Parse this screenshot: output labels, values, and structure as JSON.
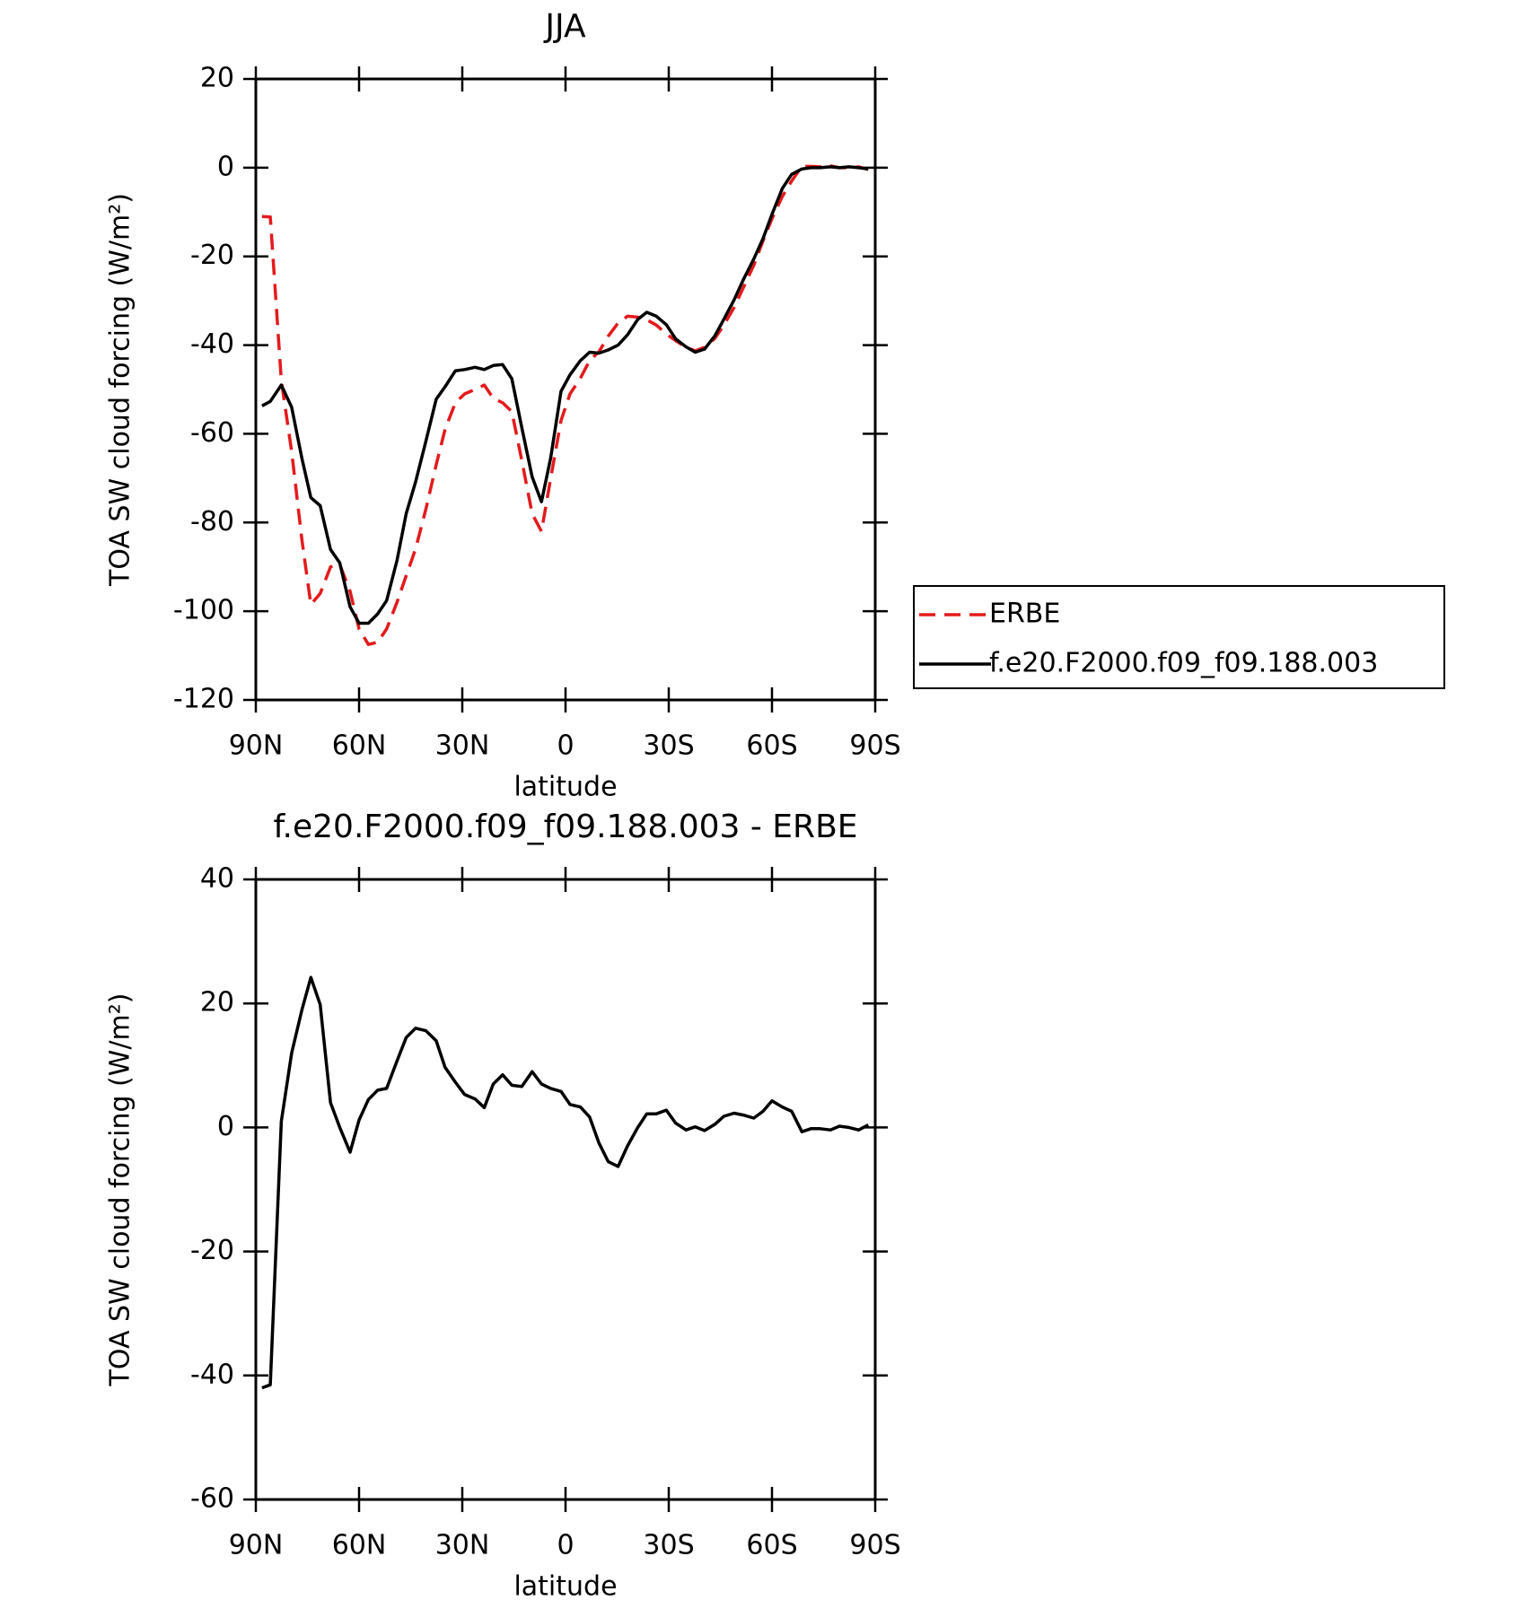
{
  "chart_data": [
    {
      "type": "line",
      "title": "JJA",
      "xlabel": "latitude",
      "ylabel": "TOA SW cloud forcing (W/m²)",
      "x": [
        88.2,
        85.8,
        82.6,
        79.6,
        76.6,
        74,
        71.3,
        68.3,
        65.6,
        62.6,
        60,
        57.3,
        54.6,
        52,
        49,
        46.3,
        43.6,
        40.6,
        37.6,
        35,
        32,
        29.3,
        26.3,
        23.6,
        21,
        18.3,
        15.6,
        12.7,
        9.7,
        7,
        4.3,
        1.3,
        -1.3,
        -4.3,
        -7,
        -9.7,
        -12.4,
        -15.3,
        -18,
        -21,
        -23.6,
        -26.4,
        -29.3,
        -32,
        -35,
        -37.7,
        -40.4,
        -43.4,
        -46,
        -49,
        -51.7,
        -54.7,
        -57.4,
        -60,
        -63,
        -65.7,
        -68.7,
        -71.3,
        -74,
        -77,
        -79.6,
        -82.3,
        -85.2,
        -88
      ],
      "series": [
        {
          "name": "ERBE",
          "color": "#e41a1c",
          "dashed": true,
          "values": [
            -11,
            -11.1,
            -48,
            -64,
            -84,
            -98.5,
            -96,
            -90,
            -89.5,
            -95.5,
            -104,
            -107.5,
            -107,
            -104,
            -98,
            -92,
            -86,
            -77,
            -67,
            -59,
            -53,
            -51,
            -50,
            -49,
            -52,
            -53,
            -55,
            -66,
            -78,
            -82,
            -70,
            -57,
            -51,
            -47.5,
            -43.5,
            -41.5,
            -38,
            -35,
            -33.5,
            -33.7,
            -34.3,
            -35.5,
            -37.5,
            -39,
            -40.5,
            -41.3,
            -40.5,
            -38.5,
            -35.5,
            -31.5,
            -27,
            -22,
            -16.5,
            -11.5,
            -6.5,
            -3,
            0.3,
            0.3,
            0.2,
            0.4,
            0,
            0,
            0.2,
            -0.4
          ]
        },
        {
          "name": "f.e20.F2000.f09_f09.188.003",
          "color": "#000000",
          "dashed": false,
          "values": [
            -53.7,
            -52.7,
            -49,
            -54,
            -65.6,
            -74.4,
            -76.2,
            -86.1,
            -89.1,
            -99,
            -102.7,
            -102.7,
            -100.6,
            -97.6,
            -88.6,
            -78,
            -70.9,
            -61.7,
            -52.2,
            -49.4,
            -45.8,
            -45.5,
            -45,
            -45.5,
            -44.6,
            -44.4,
            -47.6,
            -58.6,
            -69.7,
            -75.3,
            -65.4,
            -50.4,
            -46.7,
            -43.5,
            -41.6,
            -41.8,
            -41.1,
            -40,
            -37.7,
            -34.2,
            -32.6,
            -33.5,
            -35.4,
            -38.6,
            -40.4,
            -41.6,
            -40.9,
            -37.9,
            -34.2,
            -29.8,
            -25.2,
            -20.6,
            -16,
            -10.5,
            -4.7,
            -1.5,
            -0.3,
            0,
            0,
            0.2,
            0,
            0.2,
            0,
            -0.3
          ]
        }
      ],
      "xlim": [
        90,
        -90
      ],
      "xticks": [
        {
          "value": 90,
          "label": "90N"
        },
        {
          "value": 60,
          "label": "60N"
        },
        {
          "value": 30,
          "label": "30N"
        },
        0,
        {
          "value": -30,
          "label": "30S"
        },
        {
          "value": -60,
          "label": "60S"
        },
        {
          "value": -90,
          "label": "90S"
        }
      ],
      "ylim": [
        -120,
        20
      ],
      "yticks": [
        -120,
        -100,
        -80,
        -60,
        -40,
        -20,
        0,
        20
      ],
      "legend": "right"
    },
    {
      "type": "line",
      "title": "f.e20.F2000.f09_f09.188.003 - ERBE",
      "xlabel": "latitude",
      "ylabel": "TOA SW cloud forcing (W/m²)",
      "x": [
        88.2,
        85.8,
        82.6,
        79.6,
        76.6,
        74,
        71.3,
        68.3,
        65.6,
        62.6,
        60,
        57.3,
        54.6,
        52,
        49,
        46.3,
        43.6,
        40.6,
        37.6,
        35,
        32,
        29.3,
        26.3,
        23.6,
        21,
        18.3,
        15.6,
        12.7,
        9.7,
        7,
        4.3,
        1.3,
        -1.3,
        -4.3,
        -7,
        -9.7,
        -12.4,
        -15.3,
        -18,
        -21,
        -23.6,
        -26.4,
        -29.3,
        -32,
        -35,
        -37.7,
        -40.4,
        -43.4,
        -46,
        -49,
        -51.7,
        -54.7,
        -57.4,
        -60,
        -63,
        -65.7,
        -68.7,
        -71.3,
        -74,
        -77,
        -79.6,
        -82.3,
        -85.2,
        -88
      ],
      "color": "#000000",
      "values": [
        -42,
        -41.5,
        1,
        12,
        19,
        24.2,
        19.8,
        4,
        0,
        -4,
        1.2,
        4.5,
        6,
        6.3,
        10.7,
        14.5,
        16,
        15.6,
        14,
        9.7,
        7.3,
        5.3,
        4.6,
        3.2,
        7,
        8.5,
        6.8,
        6.6,
        9,
        7,
        6.3,
        5.8,
        3.7,
        3.3,
        1.7,
        -2.5,
        -5.5,
        -6.3,
        -3,
        0,
        2.2,
        2.2,
        2.8,
        0.7,
        -0.4,
        0.1,
        -0.5,
        0.5,
        1.8,
        2.3,
        2,
        1.5,
        2.6,
        4.3,
        3.3,
        2.6,
        -0.7,
        -0.2,
        -0.2,
        -0.4,
        0.2,
        0,
        -0.4,
        0.4
      ],
      "xlim": [
        90,
        -90
      ],
      "xticks": [
        {
          "value": 90,
          "label": "90N"
        },
        {
          "value": 60,
          "label": "60N"
        },
        {
          "value": 30,
          "label": "30N"
        },
        0,
        {
          "value": -30,
          "label": "30S"
        },
        {
          "value": -60,
          "label": "60S"
        },
        {
          "value": -90,
          "label": "90S"
        }
      ],
      "ylim": [
        -60,
        40
      ],
      "yticks": [
        -60,
        -40,
        -20,
        0,
        20,
        40
      ]
    }
  ]
}
